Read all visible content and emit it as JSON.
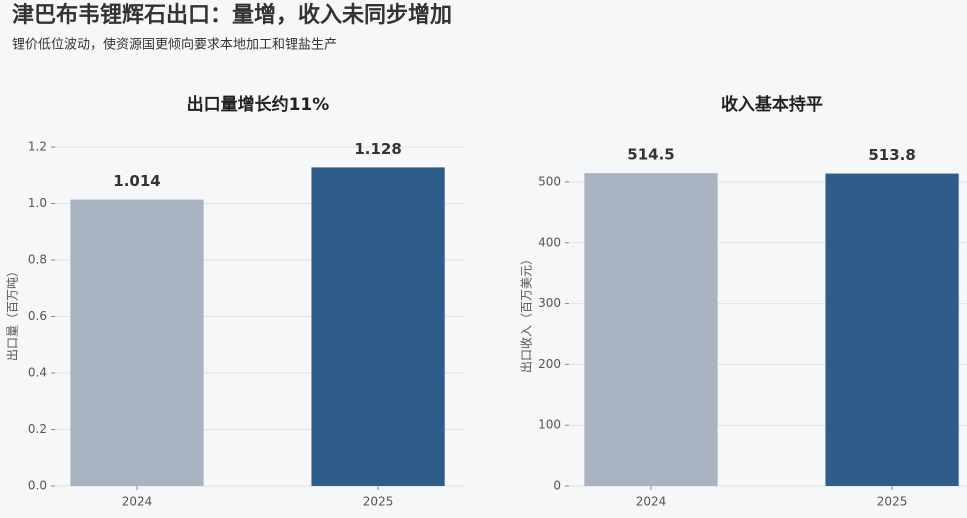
{
  "title": "津巴布韦锂辉石出口：量增，收入未同步增加",
  "subtitle": "锂价低位波动，使资源国更倾向要求本地加工和锂盐生产",
  "chart_data": [
    {
      "type": "bar",
      "title": "出口量增长约11%",
      "ylabel": "出口量（百万吨）",
      "categories": [
        "2024",
        "2025"
      ],
      "values": [
        1.014,
        1.128
      ],
      "colors": [
        "#a9b3c2",
        "#2e5d8c"
      ],
      "ylim": [
        0,
        1.225
      ],
      "yticks": [
        {
          "value": 0,
          "label": "0.0"
        },
        0.2,
        0.4,
        0.6,
        0.8,
        {
          "value": 1,
          "label": "1.0"
        },
        1.2
      ],
      "grid": true
    },
    {
      "type": "bar",
      "title": "收入基本持平",
      "ylabel": "出口收入（百万美元）",
      "categories": [
        "2024",
        "2025"
      ],
      "values": [
        514.5,
        513.8
      ],
      "colors": [
        "#a9b3c2",
        "#2e5d8c"
      ],
      "ylim": [
        0,
        569
      ],
      "yticks": [
        0,
        100,
        200,
        300,
        400,
        500
      ],
      "grid": true
    }
  ]
}
